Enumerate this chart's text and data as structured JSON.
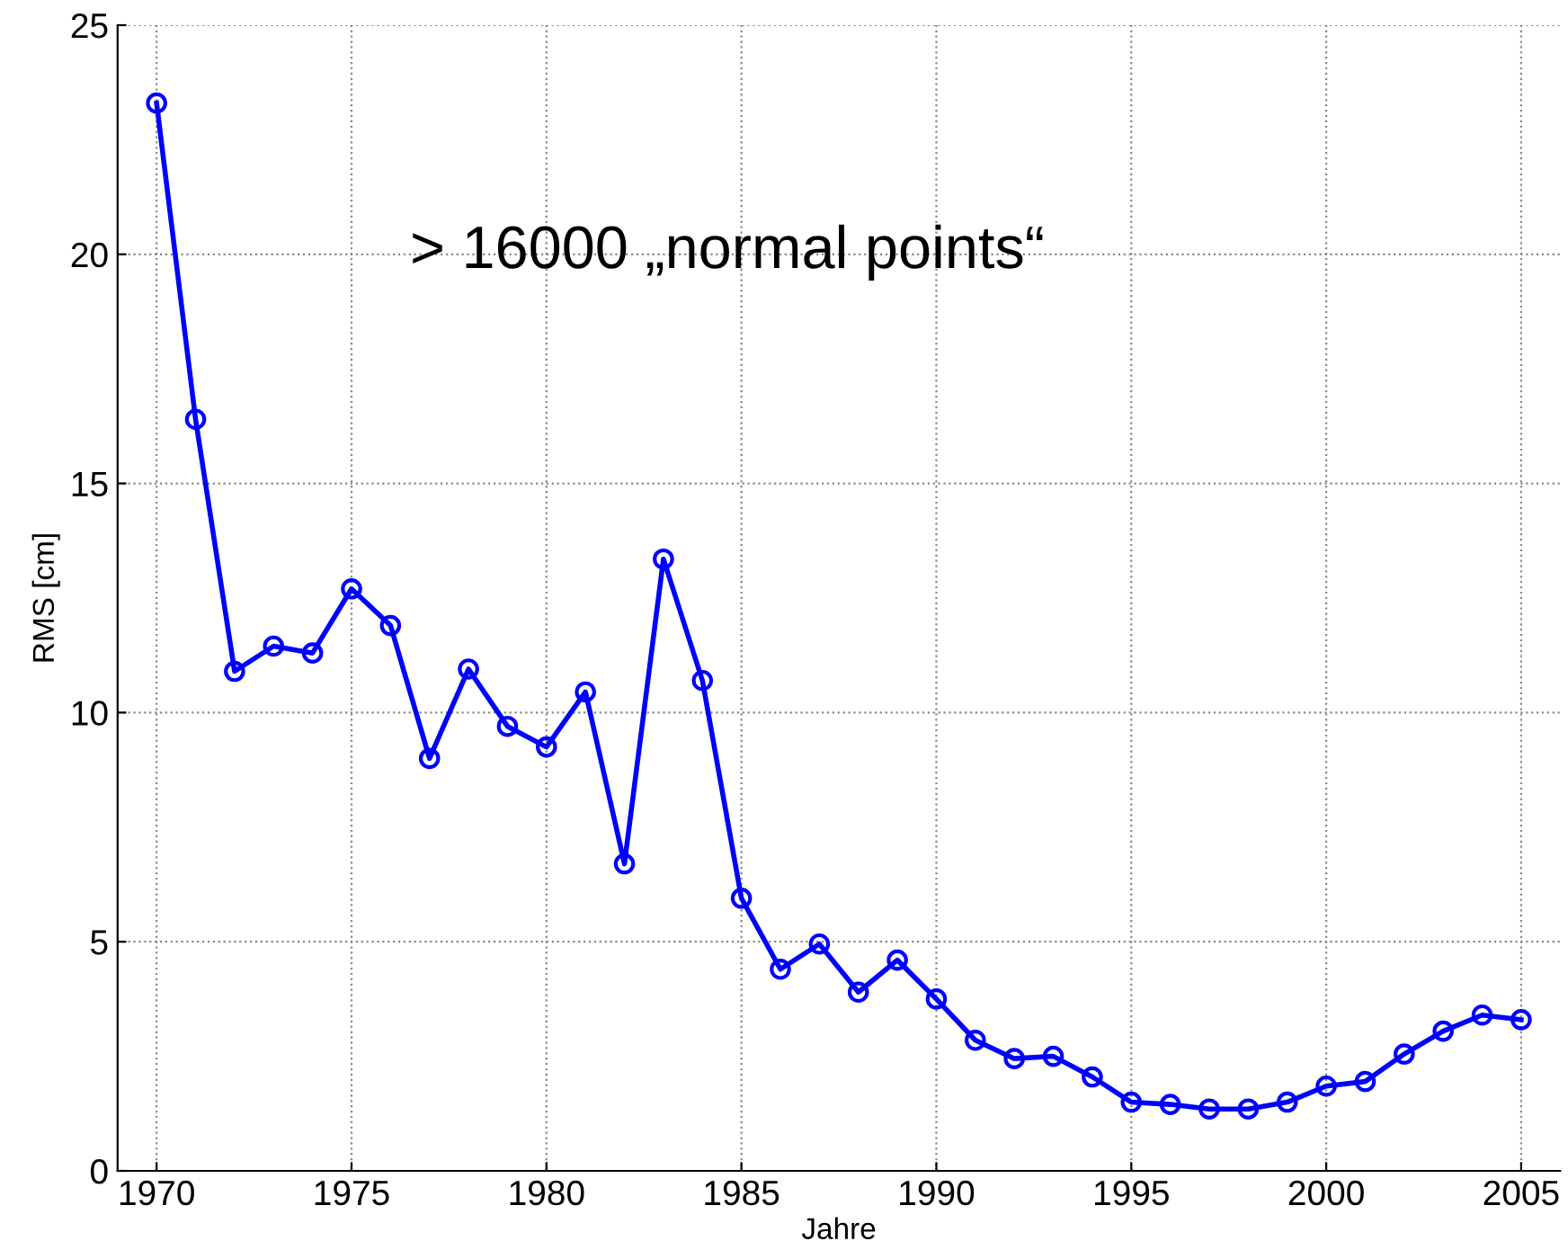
{
  "chart_data": {
    "type": "line",
    "xlabel": "Jahre",
    "ylabel": "RMS [cm]",
    "annotations": [
      "> 16000 „normal points“"
    ],
    "x": [
      1970,
      1971,
      1972,
      1973,
      1974,
      1975,
      1976,
      1977,
      1978,
      1979,
      1980,
      1981,
      1982,
      1983,
      1984,
      1985,
      1986,
      1987,
      1988,
      1989,
      1990,
      1991,
      1992,
      1993,
      1994,
      1995,
      1996,
      1997,
      1998,
      1999,
      2000,
      2001,
      2002,
      2003,
      2004,
      2005
    ],
    "series": [
      {
        "color": "#0000ff",
        "values": [
          23.3,
          16.4,
          10.9,
          11.45,
          11.3,
          12.7,
          11.9,
          9.0,
          10.95,
          9.7,
          9.25,
          10.45,
          6.7,
          13.35,
          10.7,
          5.95,
          4.4,
          4.95,
          3.9,
          4.6,
          3.75,
          2.85,
          2.45,
          2.5,
          2.05,
          1.5,
          1.45,
          1.35,
          1.35,
          1.5,
          1.85,
          1.95,
          2.55,
          3.05,
          3.4,
          3.3
        ]
      }
    ],
    "xlim": [
      1969,
      2006
    ],
    "ylim": [
      0,
      25
    ],
    "xticks": [
      1970,
      1975,
      1980,
      1985,
      1990,
      1995,
      2000,
      2005
    ],
    "yticks": [
      0,
      5,
      10,
      15,
      20,
      25
    ],
    "grid": true,
    "marker": "circle",
    "line_style": "solid"
  }
}
